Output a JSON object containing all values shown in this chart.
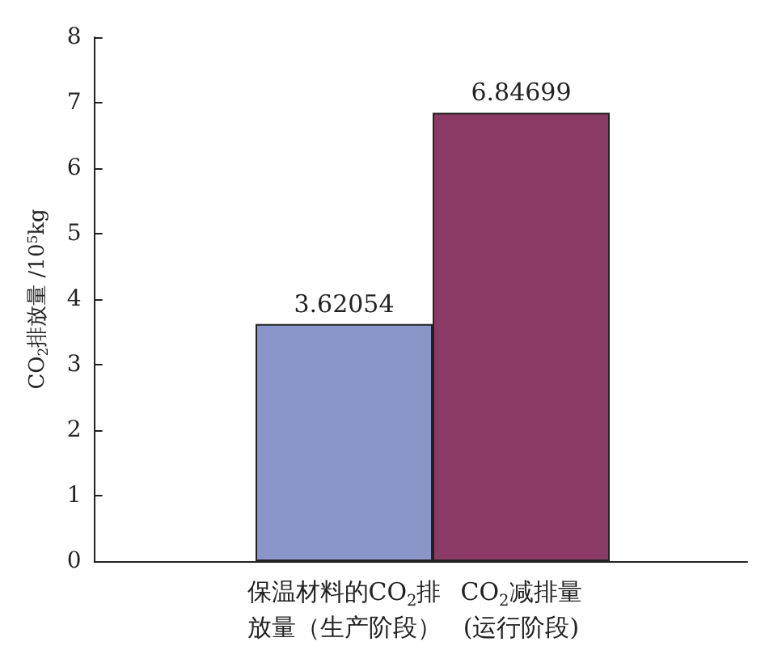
{
  "chart_data": {
    "type": "bar",
    "ylabel": "CO$_{2}$排放量 /10$^{5}$kg",
    "categories": [
      "保温材料的CO$_{2}$排放量（生产阶段）",
      "CO$_{2}$减排量(运行阶段)"
    ],
    "values": [
      3.62054,
      6.84699
    ],
    "colors": [
      "#8a95c8",
      "#8b3a66"
    ],
    "ylim": [
      0,
      8
    ],
    "yticks": [
      0,
      1,
      2,
      3,
      4,
      5,
      6,
      7,
      8
    ],
    "data_labels": true,
    "grid": false
  }
}
